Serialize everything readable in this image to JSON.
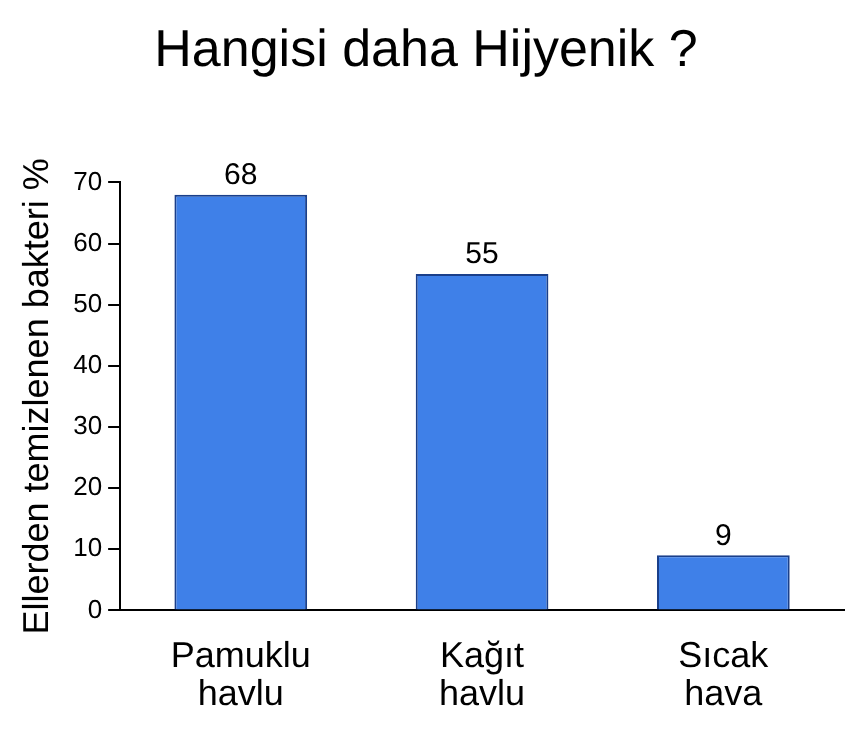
{
  "chart_data": {
    "type": "bar",
    "title": "Hangisi daha Hijyenik ?",
    "ylabel": "Ellerden temizlenen bakteri %",
    "categories": [
      "Pamuklu havlu",
      "Kağıt havlu",
      "Sıcak hava"
    ],
    "values": [
      68,
      55,
      9
    ],
    "color": "#3f80e8",
    "ylim": [
      0,
      70
    ],
    "yticks": [
      0,
      10,
      20,
      30,
      40,
      50,
      60,
      70
    ],
    "grid": false,
    "legend": false,
    "data_labels": true
  }
}
